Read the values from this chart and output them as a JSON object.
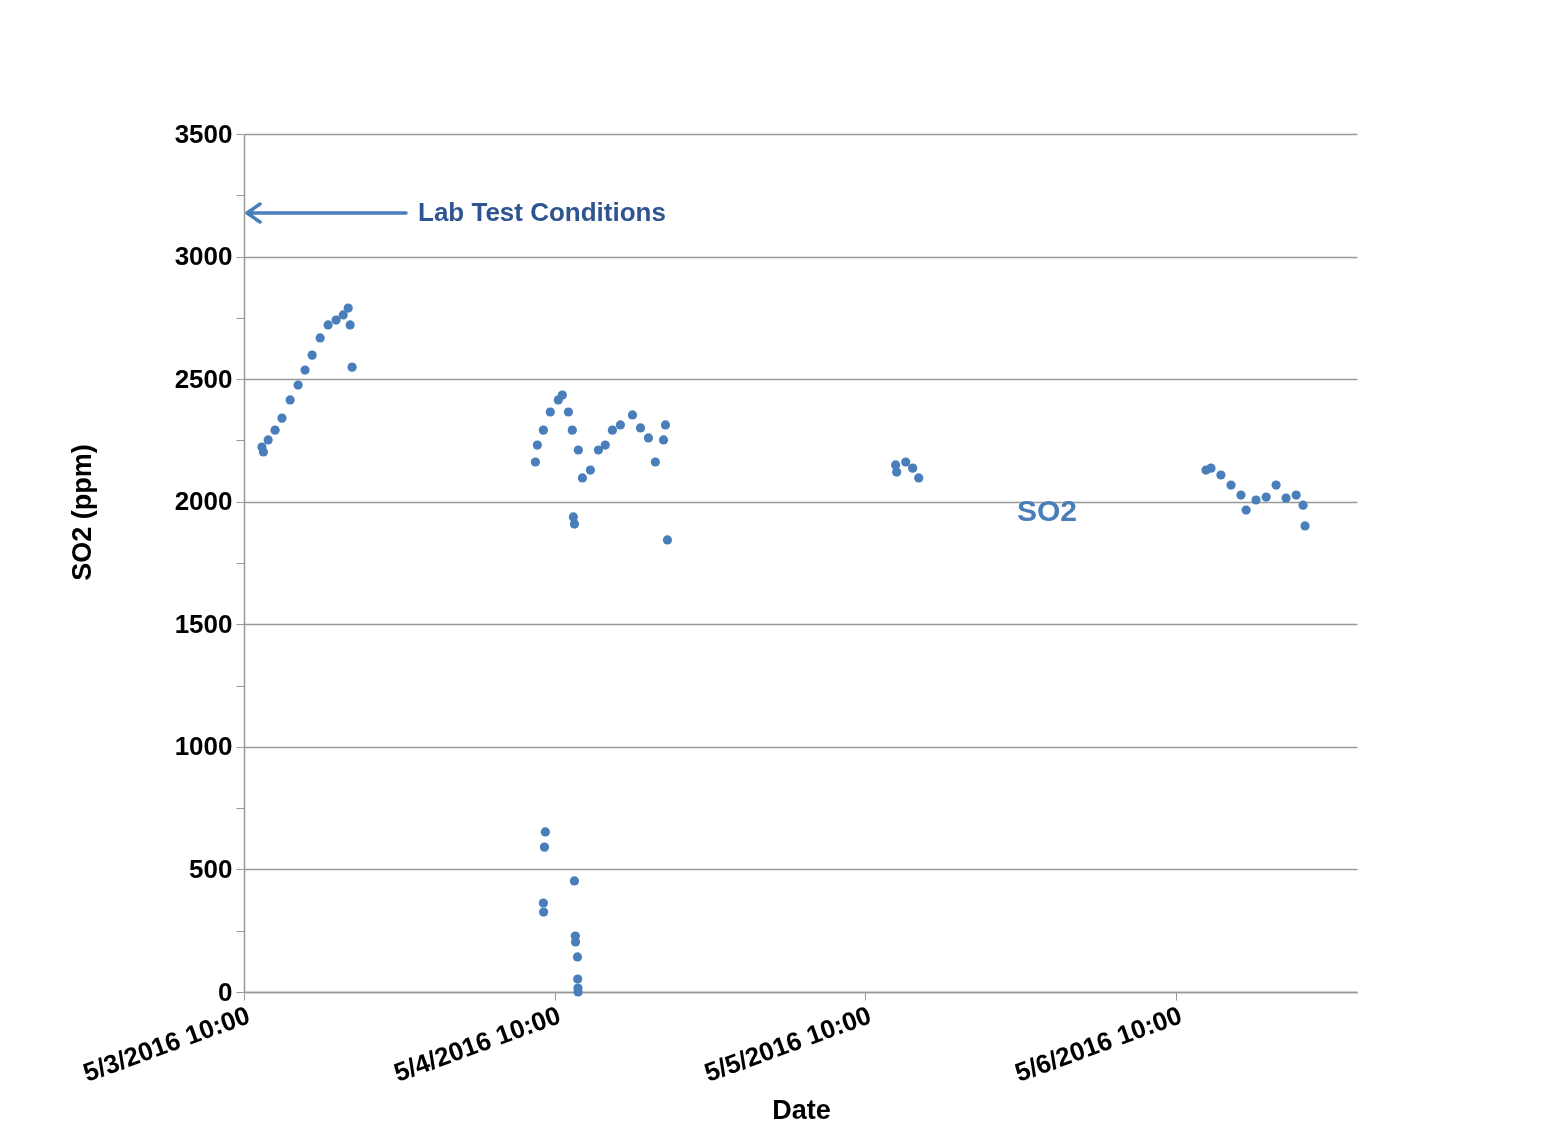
{
  "chart_data": {
    "type": "scatter",
    "xlabel": "Date",
    "ylabel": "SO2 (ppm)",
    "xlim": [
      "2016-05-03T10:00",
      "2016-05-07T00:00"
    ],
    "xticks": [
      {
        "value": "2016-05-03T10:00",
        "label": "5/3/2016 10:00"
      },
      {
        "value": "2016-05-04T10:00",
        "label": "5/4/2016 10:00"
      },
      {
        "value": "2016-05-05T10:00",
        "label": "5/5/2016 10:00"
      },
      {
        "value": "2016-05-06T10:00",
        "label": "5/6/2016 10:00"
      }
    ],
    "ylim": [
      0,
      3500
    ],
    "yticks": [
      0,
      {
        "value": 250,
        "label": null
      },
      500,
      {
        "value": 750,
        "label": null
      },
      1000,
      {
        "value": 1250,
        "label": null
      },
      1500,
      {
        "value": 1750,
        "label": null
      },
      2000,
      {
        "value": 2250,
        "label": null
      },
      2500,
      {
        "value": 2750,
        "label": null
      },
      3000,
      {
        "value": 3250,
        "label": null
      },
      3500
    ],
    "grid": "y",
    "marker": "circle",
    "annotations": [
      "Lab Test Conditions"
    ],
    "series": [
      {
        "name": "SO2",
        "color": "#4a7ebb",
        "x": [
          "2016-05-03T11:23",
          "2016-05-03T11:30",
          "2016-05-03T11:52",
          "2016-05-03T12:24",
          "2016-05-03T12:56",
          "2016-05-03T13:34",
          "2016-05-03T14:11",
          "2016-05-03T14:43",
          "2016-05-03T15:16",
          "2016-05-03T15:53",
          "2016-05-03T16:30",
          "2016-05-03T17:07",
          "2016-05-03T17:40",
          "2016-05-03T18:03",
          "2016-05-03T18:12",
          "2016-05-03T18:21",
          "2016-05-04T08:31",
          "2016-05-04T08:40",
          "2016-05-04T09:08",
          "2016-05-04T09:40",
          "2016-05-04T10:17",
          "2016-05-04T10:36",
          "2016-05-04T11:04",
          "2016-05-04T11:22",
          "2016-05-04T11:50",
          "2016-05-04T12:09",
          "2016-05-04T12:46",
          "2016-05-04T13:23",
          "2016-05-04T13:55",
          "2016-05-04T14:28",
          "2016-05-04T15:05",
          "2016-05-04T16:01",
          "2016-05-04T16:38",
          "2016-05-04T17:15",
          "2016-05-04T17:47",
          "2016-05-04T18:25",
          "2016-05-04T18:34",
          "2016-05-04T11:27",
          "2016-05-04T11:32",
          "2016-05-04T18:43",
          "2016-05-04T09:17",
          "2016-05-04T09:13",
          "2016-05-04T09:08",
          "2016-05-04T09:09",
          "2016-05-04T11:32",
          "2016-05-04T11:36",
          "2016-05-04T11:37",
          "2016-05-04T11:46",
          "2016-05-04T11:47",
          "2016-05-04T11:48",
          "2016-05-04T11:49",
          "2016-05-05T12:21",
          "2016-05-05T12:26",
          "2016-05-05T13:08",
          "2016-05-05T13:40",
          "2016-05-05T14:08",
          "2016-05-06T12:20",
          "2016-05-06T12:43",
          "2016-05-06T13:29",
          "2016-05-06T14:16",
          "2016-05-06T15:02",
          "2016-05-06T15:26",
          "2016-05-06T16:12",
          "2016-05-06T16:59",
          "2016-05-06T17:45",
          "2016-05-06T18:31",
          "2016-05-06T19:18",
          "2016-05-06T19:50",
          "2016-05-06T19:59"
        ],
        "values": [
          2223,
          2203,
          2252,
          2292,
          2341,
          2415,
          2476,
          2537,
          2598,
          2668,
          2721,
          2741,
          2762,
          2790,
          2721,
          2549,
          2162,
          2231,
          2292,
          2366,
          2415,
          2435,
          2366,
          2292,
          2211,
          2097,
          2129,
          2211,
          2231,
          2292,
          2313,
          2354,
          2301,
          2260,
          2162,
          2252,
          2313,
          1938,
          1909,
          1844,
          653,
          591,
          363,
          326,
          453,
          228,
          204,
          143,
          53,
          16,
          0,
          2150,
          2121,
          2162,
          2137,
          2097,
          2129,
          2137,
          2109,
          2068,
          2027,
          1966,
          2007,
          2019,
          2068,
          2015,
          2027,
          1986,
          1901
        ]
      }
    ]
  }
}
